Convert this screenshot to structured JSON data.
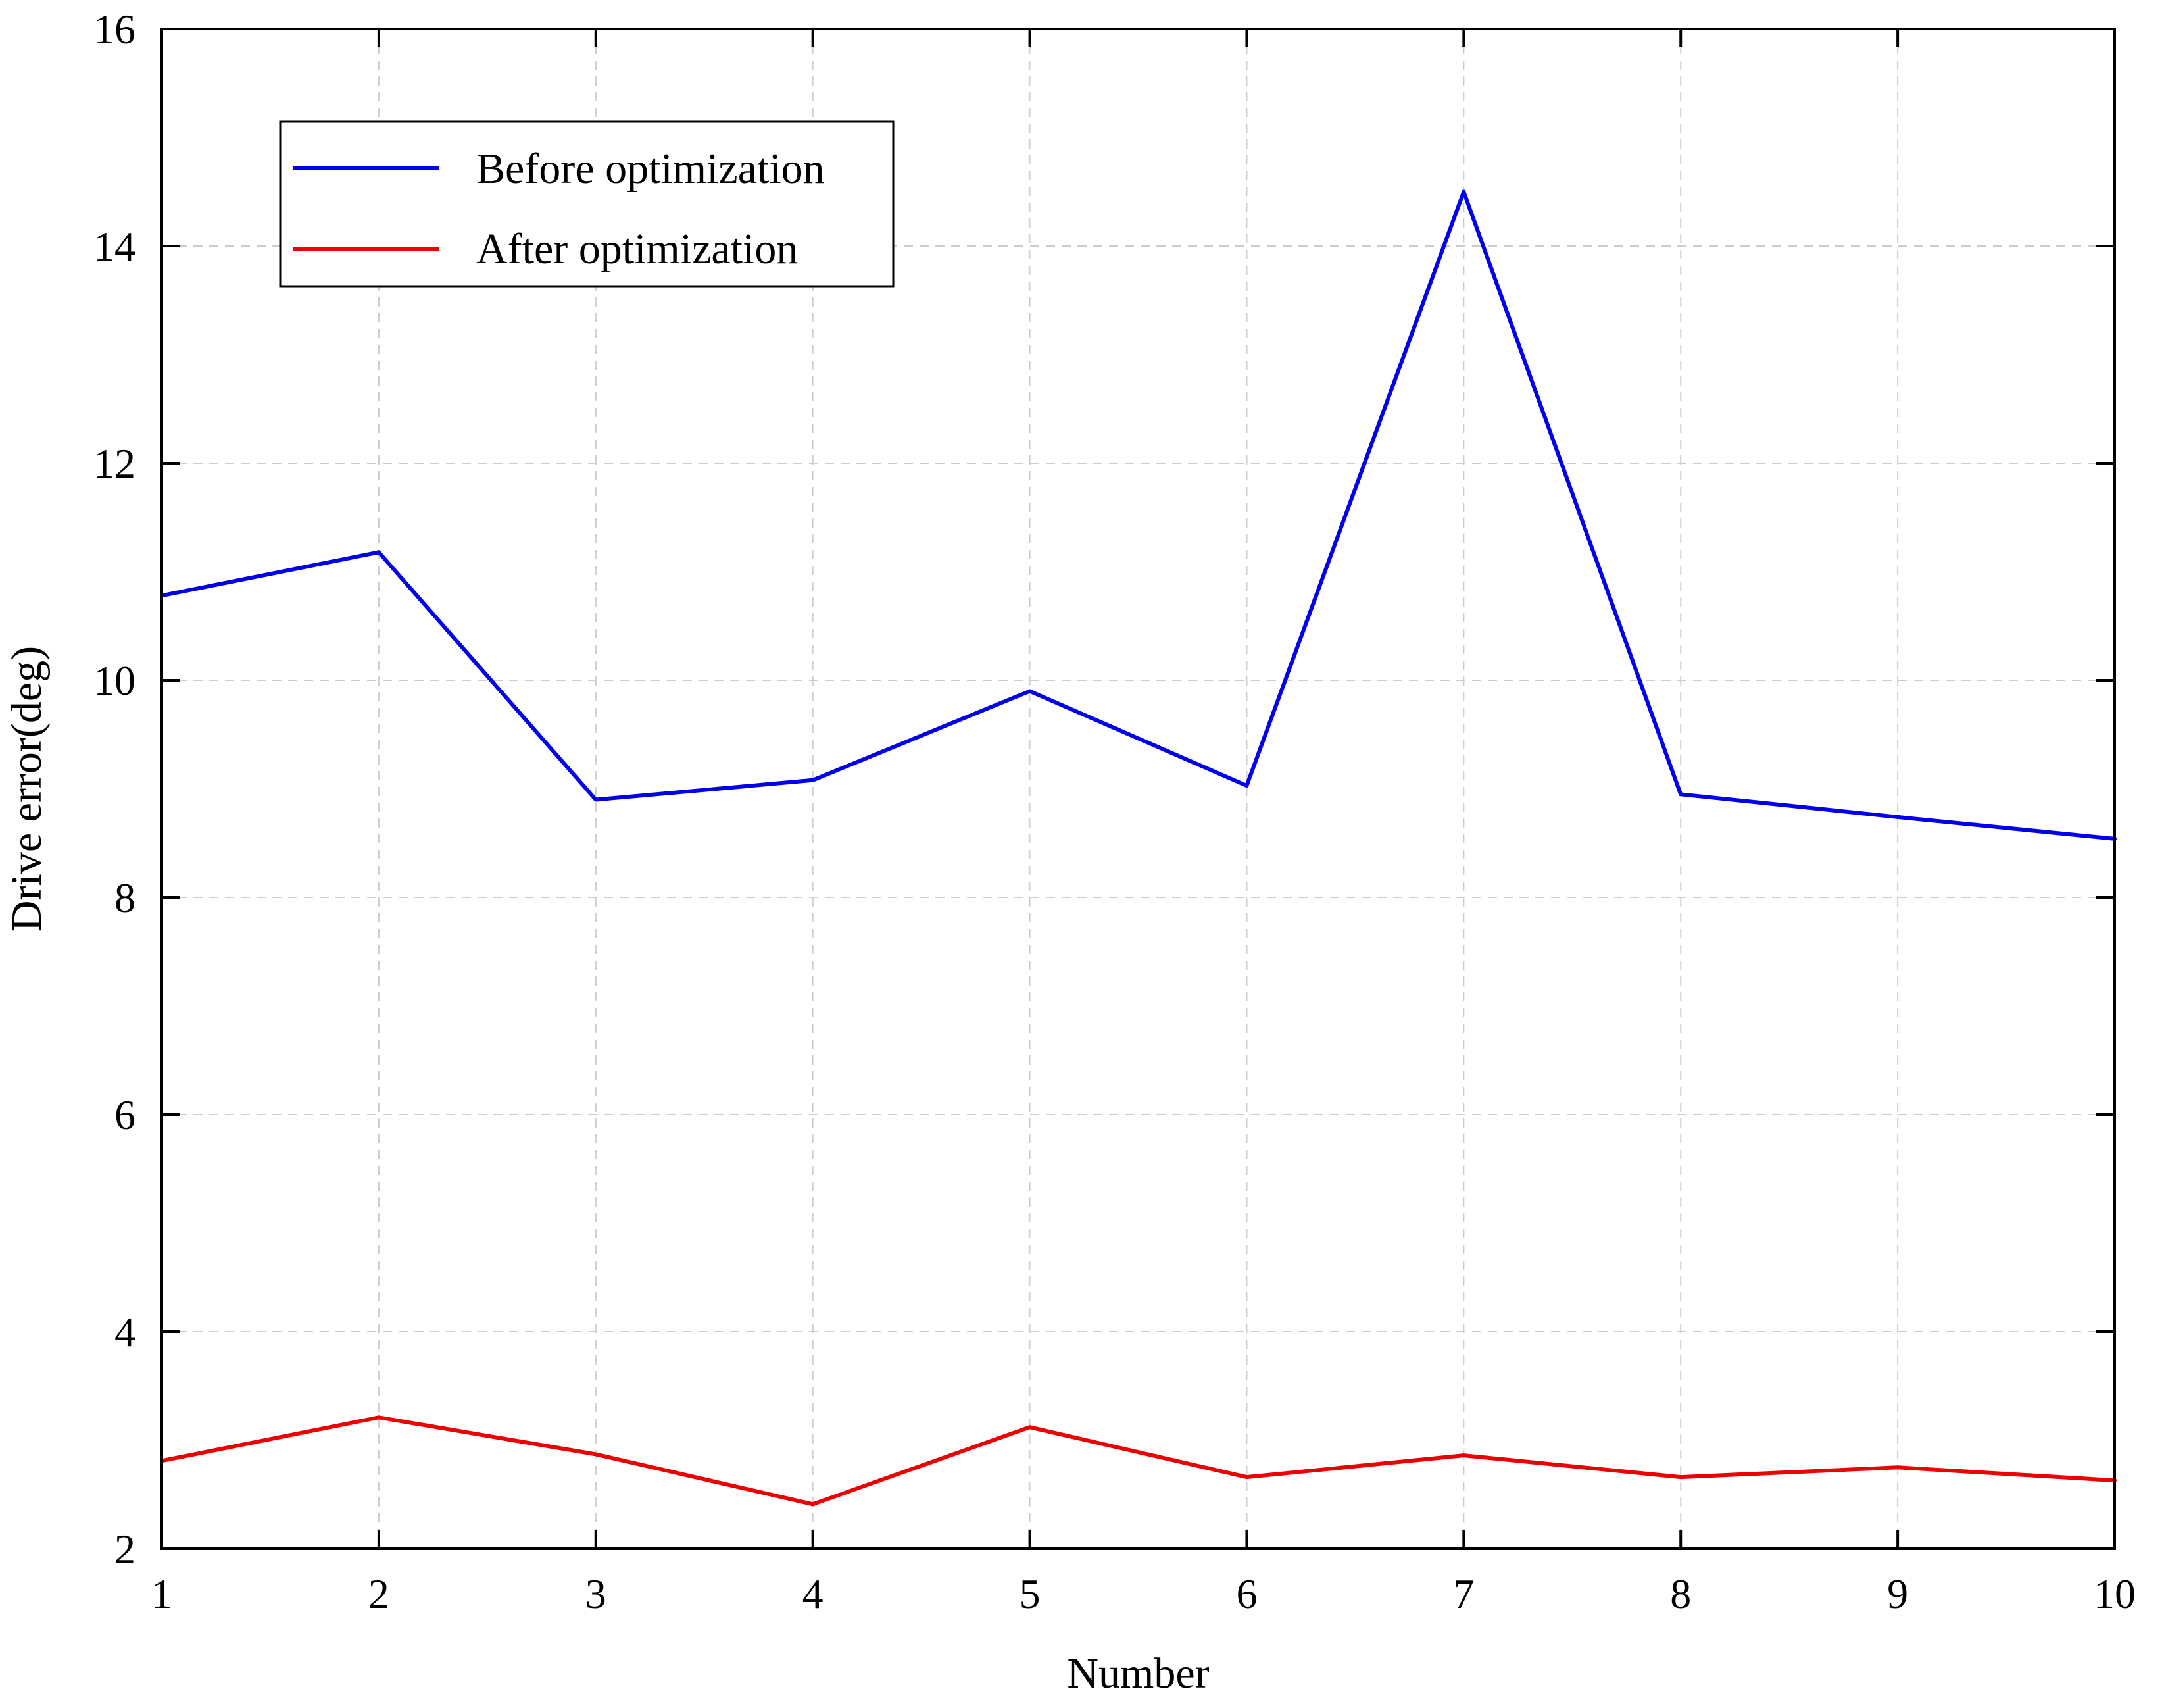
{
  "chart_data": {
    "type": "line",
    "xlabel": "Number",
    "ylabel": "Drive error(deg)",
    "x": [
      1,
      2,
      3,
      4,
      5,
      6,
      7,
      8,
      9,
      10
    ],
    "xlim": [
      1,
      10
    ],
    "ylim": [
      2,
      16
    ],
    "xticks": [
      "1",
      "2",
      "3",
      "4",
      "5",
      "6",
      "7",
      "8",
      "9",
      "10"
    ],
    "yticks": [
      "2",
      "4",
      "6",
      "8",
      "10",
      "12",
      "14",
      "16"
    ],
    "grid": true,
    "legend_position": "top-left",
    "series": [
      {
        "name": "Before optimization",
        "color": "#0000ee",
        "values": [
          10.78,
          11.18,
          8.9,
          9.08,
          9.9,
          9.03,
          14.5,
          8.95,
          8.74,
          8.54
        ]
      },
      {
        "name": "After optimization",
        "color": "#ee0000",
        "values": [
          2.81,
          3.21,
          2.87,
          2.41,
          3.12,
          2.66,
          2.86,
          2.66,
          2.75,
          2.63
        ]
      }
    ]
  }
}
